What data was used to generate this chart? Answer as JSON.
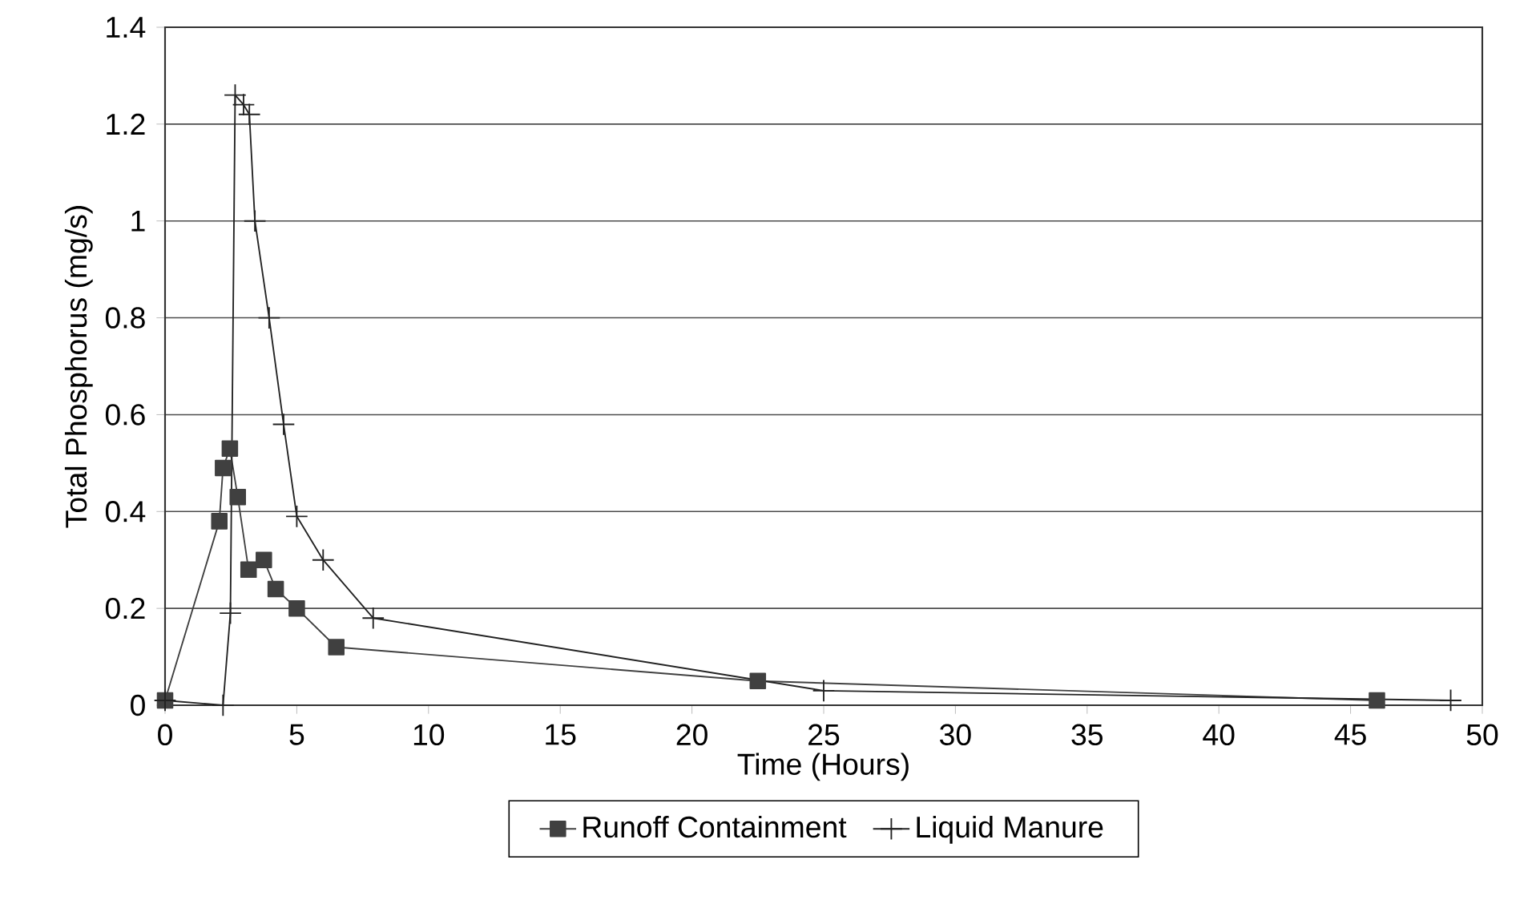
{
  "chart_data": {
    "type": "line",
    "xlabel": "Time (Hours)",
    "ylabel": "Total Phosphorus (mg/s)",
    "xlim": [
      0,
      50
    ],
    "xticks": [
      0,
      5,
      10,
      15,
      20,
      25,
      30,
      35,
      40,
      45,
      50
    ],
    "ylim": [
      0,
      1.4
    ],
    "yticks": [
      0,
      0.2,
      0.4,
      0.6,
      0.8,
      1,
      1.2,
      1.4
    ],
    "grid": "y",
    "legend": "bottom",
    "series": [
      {
        "name": "Runoff Containment",
        "color": "#404040",
        "marker": "square",
        "x": [
          0,
          2.06,
          2.2,
          2.46,
          2.76,
          3.17,
          3.75,
          4.2,
          5,
          6.5,
          22.5,
          46
        ],
        "values": [
          0.01,
          0.38,
          0.49,
          0.53,
          0.43,
          0.28,
          0.3,
          0.24,
          0.2,
          0.12,
          0.05,
          0.01
        ]
      },
      {
        "name": "Liquid Manure",
        "color": "#222222",
        "marker": "cross",
        "x": [
          0,
          2.2,
          2.48,
          2.66,
          2.98,
          3.2,
          3.41,
          3.95,
          4.5,
          5,
          6,
          7.9,
          25,
          48.8
        ],
        "values": [
          0.01,
          0,
          0.19,
          1.26,
          1.24,
          1.22,
          1,
          0.8,
          0.58,
          0.39,
          0.3,
          0.18,
          0.03,
          0.01
        ]
      }
    ]
  }
}
